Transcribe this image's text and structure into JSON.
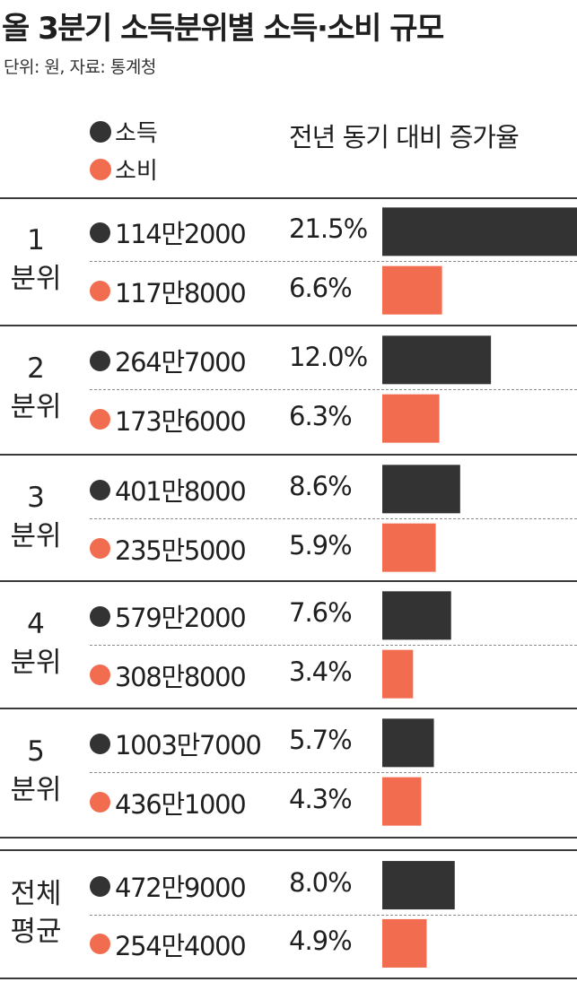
{
  "title": "올 3분기 소득분위별 소득·소비 규모",
  "subtitle": "단위: 원, 자료: 통계청",
  "legend": [
    {
      "label": "소득",
      "color": "#333333"
    },
    {
      "label": "소비",
      "color": "#f26c50"
    }
  ],
  "column_header": "전년 동기 대비 증가율",
  "chart_data": {
    "type": "bar",
    "orientation": "horizontal",
    "value_unit": "%",
    "xlim": [
      0,
      21.5
    ],
    "groups": [
      {
        "label": "1\n분위",
        "income": {
          "amount": "114만2000",
          "growth": 21.5
        },
        "spending": {
          "amount": "117만8000",
          "growth": 6.6
        }
      },
      {
        "label": "2\n분위",
        "income": {
          "amount": "264만7000",
          "growth": 12.0
        },
        "spending": {
          "amount": "173만6000",
          "growth": 6.3
        }
      },
      {
        "label": "3\n분위",
        "income": {
          "amount": "401만8000",
          "growth": 8.6
        },
        "spending": {
          "amount": "235만5000",
          "growth": 5.9
        }
      },
      {
        "label": "4\n분위",
        "income": {
          "amount": "579만2000",
          "growth": 7.6
        },
        "spending": {
          "amount": "308만8000",
          "growth": 3.4
        }
      },
      {
        "label": "5\n분위",
        "income": {
          "amount": "1003만7000",
          "growth": 5.7
        },
        "spending": {
          "amount": "436만1000",
          "growth": 4.3
        }
      },
      {
        "label": "전체\n평균",
        "income": {
          "amount": "472만9000",
          "growth": 8.0
        },
        "spending": {
          "amount": "254만4000",
          "growth": 4.9
        }
      }
    ]
  }
}
